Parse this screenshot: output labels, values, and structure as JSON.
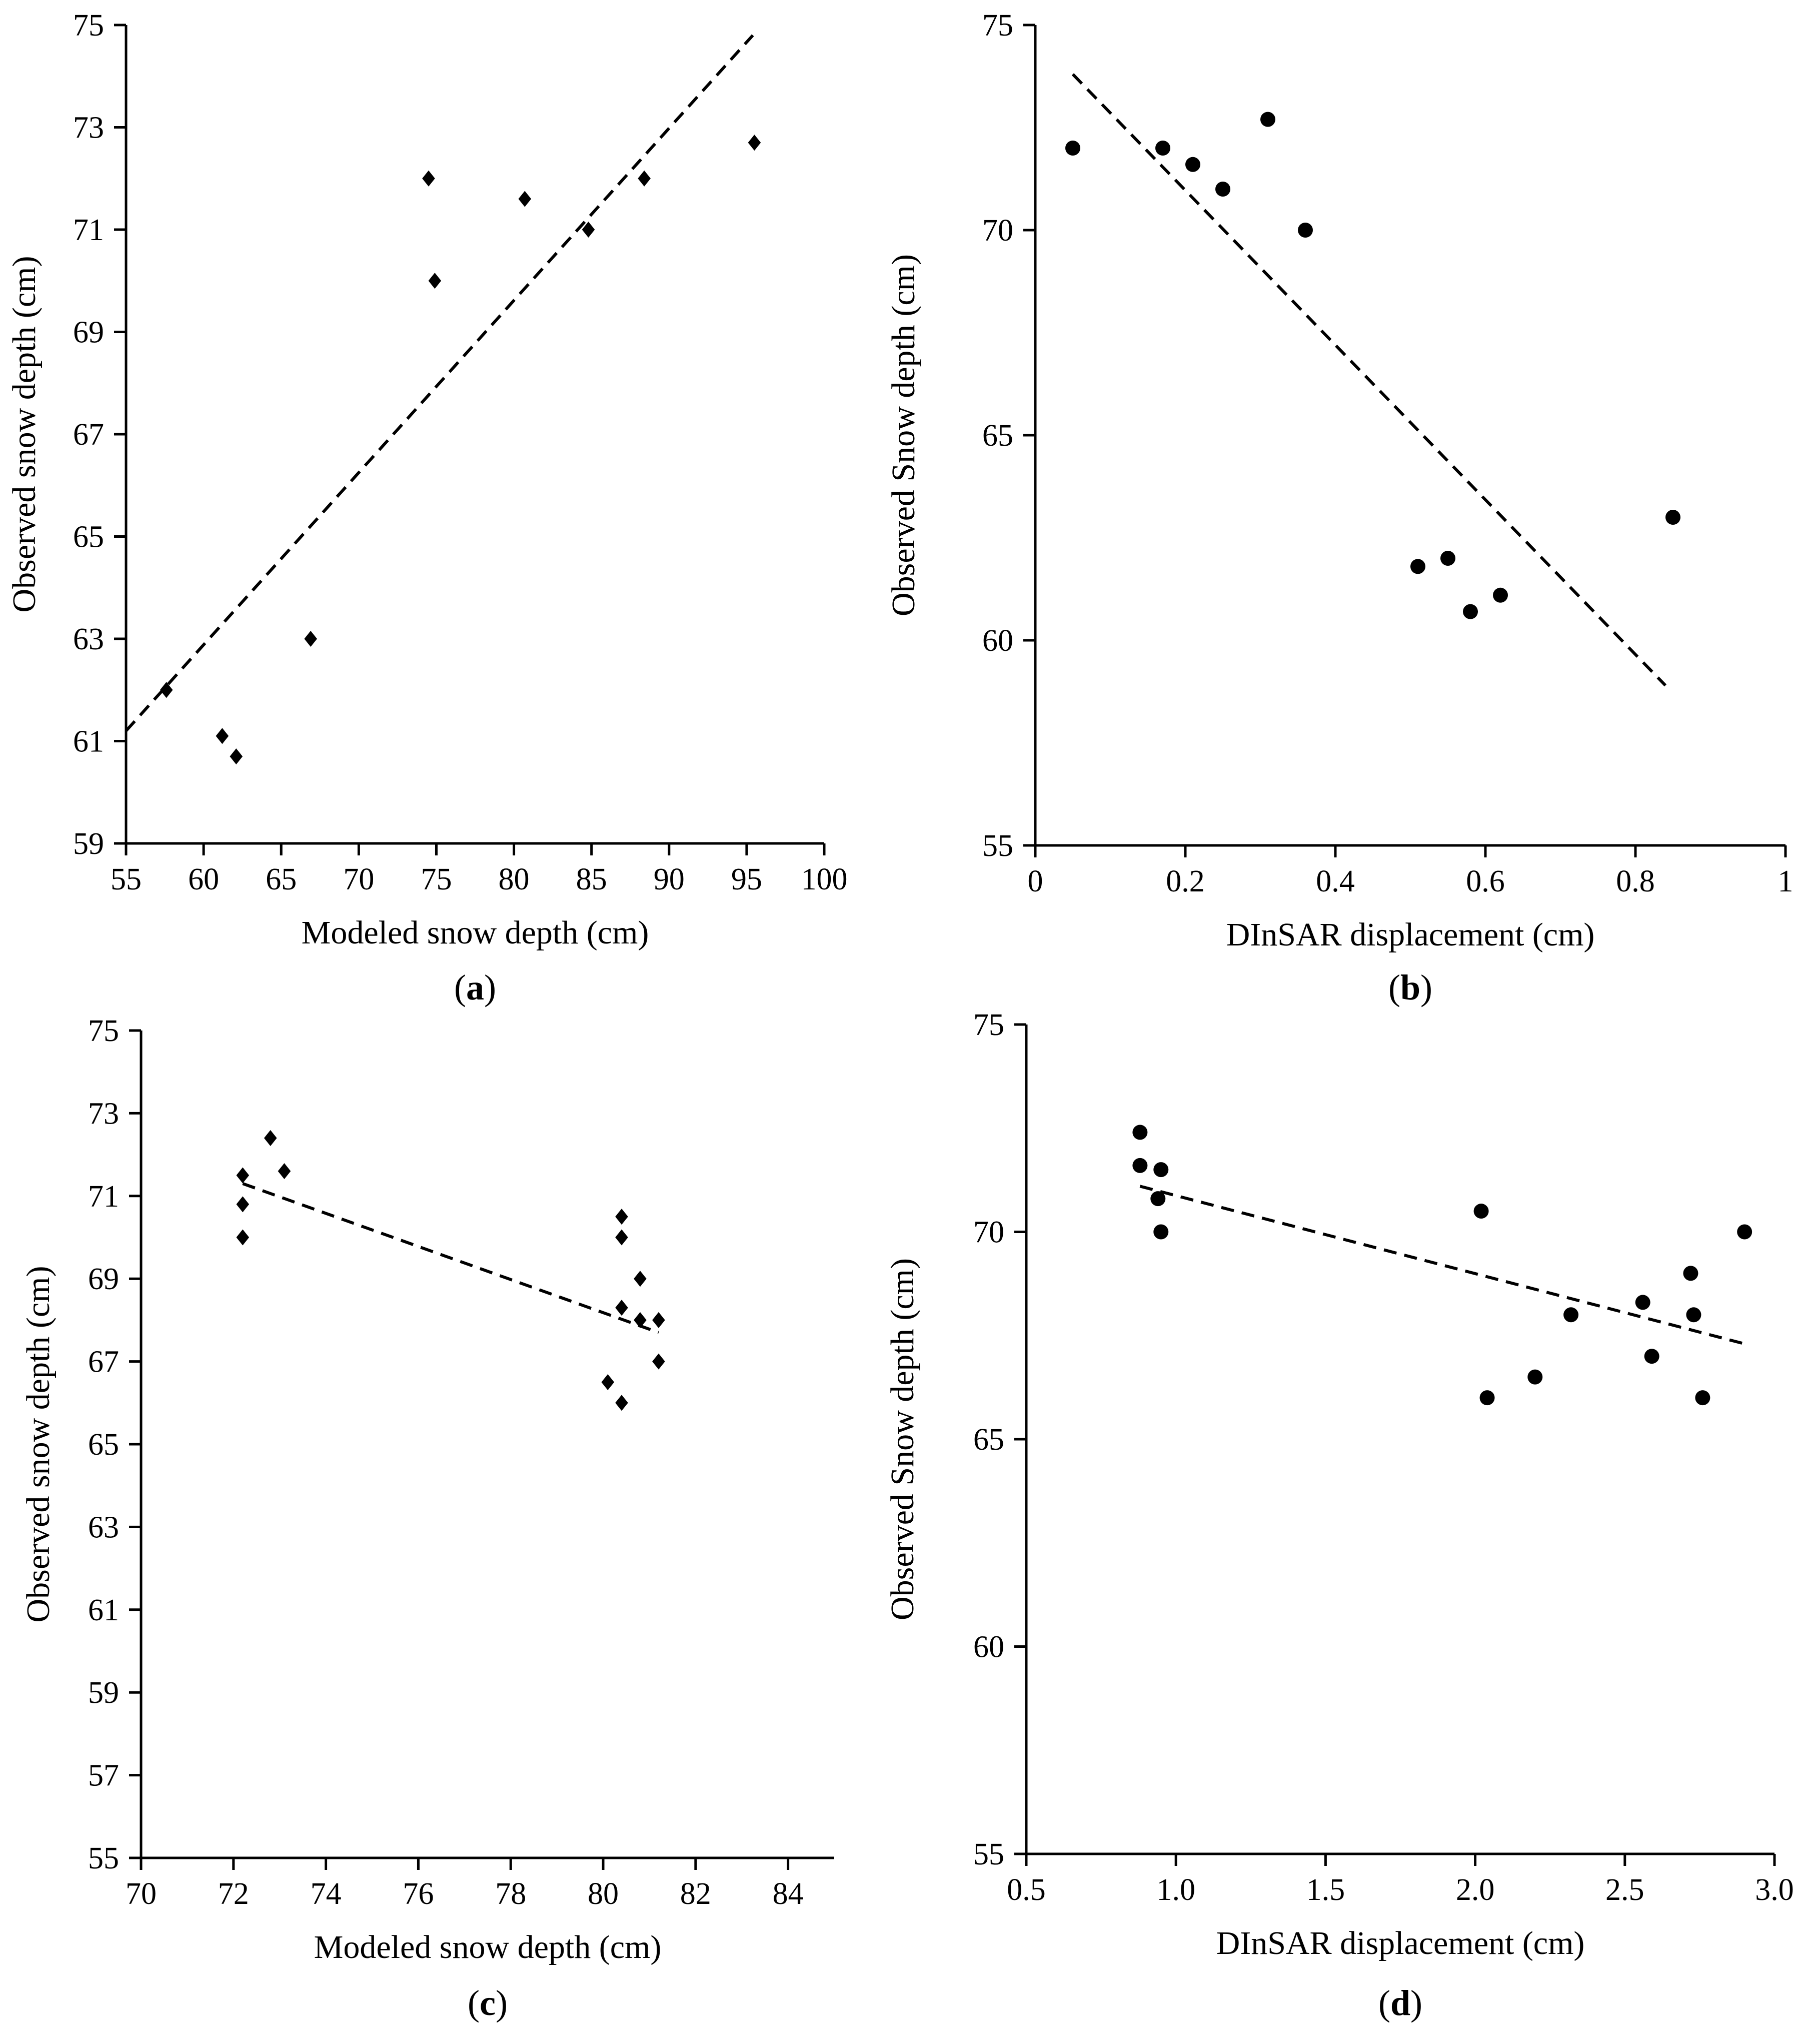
{
  "chart_data": [
    {
      "id": "a",
      "type": "scatter",
      "caption_letter": "a",
      "xlabel": "Modeled snow depth (cm)",
      "ylabel": "Observed snow depth (cm)",
      "xlim": [
        55,
        100
      ],
      "ylim": [
        59,
        75
      ],
      "xticks": [
        55,
        60,
        65,
        70,
        75,
        80,
        85,
        90,
        95,
        100
      ],
      "yticks": [
        59,
        61,
        63,
        65,
        67,
        69,
        71,
        73,
        75
      ],
      "tick_decimals_x": 0,
      "tick_decimals_y": 0,
      "marker": "diamond",
      "points": [
        [
          57.6,
          62.0
        ],
        [
          61.2,
          61.1
        ],
        [
          62.1,
          60.7
        ],
        [
          66.9,
          63.0
        ],
        [
          74.5,
          72.0
        ],
        [
          74.9,
          70.0
        ],
        [
          80.7,
          71.6
        ],
        [
          84.8,
          71.0
        ],
        [
          88.4,
          72.0
        ],
        [
          95.5,
          72.7
        ]
      ],
      "trendline": [
        [
          55.0,
          61.2
        ],
        [
          95.4,
          74.8
        ]
      ]
    },
    {
      "id": "b",
      "type": "scatter",
      "caption_letter": "b",
      "xlabel": "DInSAR displacement  (cm)",
      "ylabel": "Observed Snow depth (cm)",
      "xlim": [
        0,
        1
      ],
      "ylim": [
        55,
        75
      ],
      "xticks": [
        0,
        0.2,
        0.4,
        0.6,
        0.8,
        1
      ],
      "yticks": [
        55,
        60,
        65,
        70,
        75
      ],
      "tick_decimals_x": null,
      "tick_decimals_y": 0,
      "marker": "circle",
      "points": [
        [
          0.05,
          72.0
        ],
        [
          0.17,
          72.0
        ],
        [
          0.21,
          71.6
        ],
        [
          0.25,
          71.0
        ],
        [
          0.31,
          72.7
        ],
        [
          0.36,
          70.0
        ],
        [
          0.51,
          61.8
        ],
        [
          0.55,
          62.0
        ],
        [
          0.58,
          60.7
        ],
        [
          0.62,
          61.1
        ],
        [
          0.85,
          63.0
        ]
      ],
      "trendline": [
        [
          0.05,
          73.8
        ],
        [
          0.84,
          58.9
        ]
      ]
    },
    {
      "id": "c",
      "type": "scatter",
      "caption_letter": "c",
      "xlabel": "Modeled snow depth (cm)",
      "ylabel": "Observed snow depth (cm)",
      "xlim": [
        70,
        85
      ],
      "ylim": [
        55,
        75
      ],
      "xticks": [
        70,
        72,
        74,
        76,
        78,
        80,
        82,
        84
      ],
      "yticks": [
        55,
        57,
        59,
        61,
        63,
        65,
        67,
        69,
        71,
        73,
        75
      ],
      "tick_decimals_x": 0,
      "tick_decimals_y": 0,
      "marker": "diamond",
      "points": [
        [
          72.2,
          71.5
        ],
        [
          72.2,
          70.8
        ],
        [
          72.2,
          70.0
        ],
        [
          72.8,
          72.4
        ],
        [
          73.1,
          71.6
        ],
        [
          80.1,
          66.5
        ],
        [
          80.4,
          70.5
        ],
        [
          80.4,
          70.0
        ],
        [
          80.4,
          68.3
        ],
        [
          80.4,
          66.0
        ],
        [
          80.8,
          69.0
        ],
        [
          80.8,
          68.0
        ],
        [
          81.2,
          68.0
        ],
        [
          81.2,
          67.0
        ]
      ],
      "trendline": [
        [
          72.2,
          71.3
        ],
        [
          81.2,
          67.7
        ]
      ]
    },
    {
      "id": "d",
      "type": "scatter",
      "caption_letter": "d",
      "xlabel": "DInSAR displacement  (cm)",
      "ylabel": "Observed Snow depth (cm)",
      "xlim": [
        0.5,
        3.0
      ],
      "ylim": [
        55,
        75
      ],
      "xticks": [
        0.5,
        1.0,
        1.5,
        2.0,
        2.5,
        3.0
      ],
      "yticks": [
        55,
        60,
        65,
        70,
        75
      ],
      "tick_decimals_x": 1,
      "tick_decimals_y": 0,
      "marker": "circle",
      "points": [
        [
          0.88,
          72.4
        ],
        [
          0.88,
          71.6
        ],
        [
          0.94,
          70.8
        ],
        [
          0.95,
          71.5
        ],
        [
          0.95,
          70.0
        ],
        [
          2.02,
          70.5
        ],
        [
          2.04,
          66.0
        ],
        [
          2.2,
          66.5
        ],
        [
          2.32,
          68.0
        ],
        [
          2.56,
          68.3
        ],
        [
          2.59,
          67.0
        ],
        [
          2.72,
          69.0
        ],
        [
          2.73,
          68.0
        ],
        [
          2.76,
          66.0
        ],
        [
          2.9,
          70.0
        ]
      ],
      "trendline": [
        [
          0.88,
          71.1
        ],
        [
          2.9,
          67.3
        ]
      ]
    }
  ]
}
